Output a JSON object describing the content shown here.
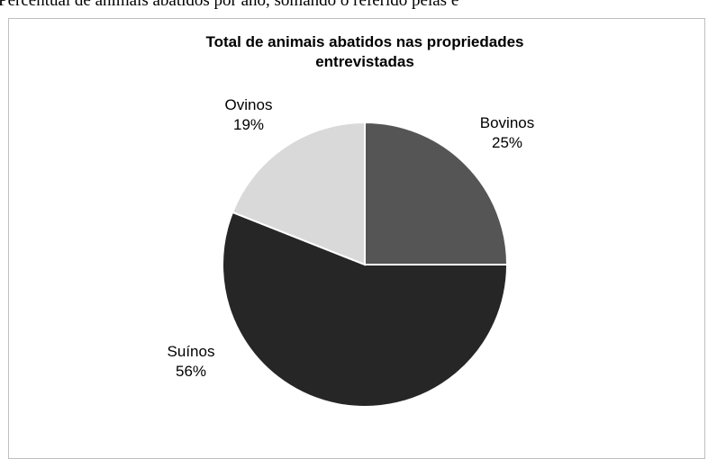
{
  "caption": "Percentual de animais abatidos por ano, somando o referido pelas e",
  "chart_data": {
    "type": "pie",
    "title_lines": [
      "Total de animais abatidos nas propriedades",
      "entrevistadas"
    ],
    "slices": [
      {
        "label": "Bovinos",
        "value": 25,
        "value_label": "25%",
        "color": "#555555"
      },
      {
        "label": "Suínos",
        "value": 56,
        "value_label": "56%",
        "color": "#262626"
      },
      {
        "label": "Ovinos",
        "value": 19,
        "value_label": "19%",
        "color": "#d9d9d9"
      }
    ],
    "start_angle_deg": 0,
    "direction": "clockwise",
    "legend": "none",
    "data_labels": "outside"
  }
}
